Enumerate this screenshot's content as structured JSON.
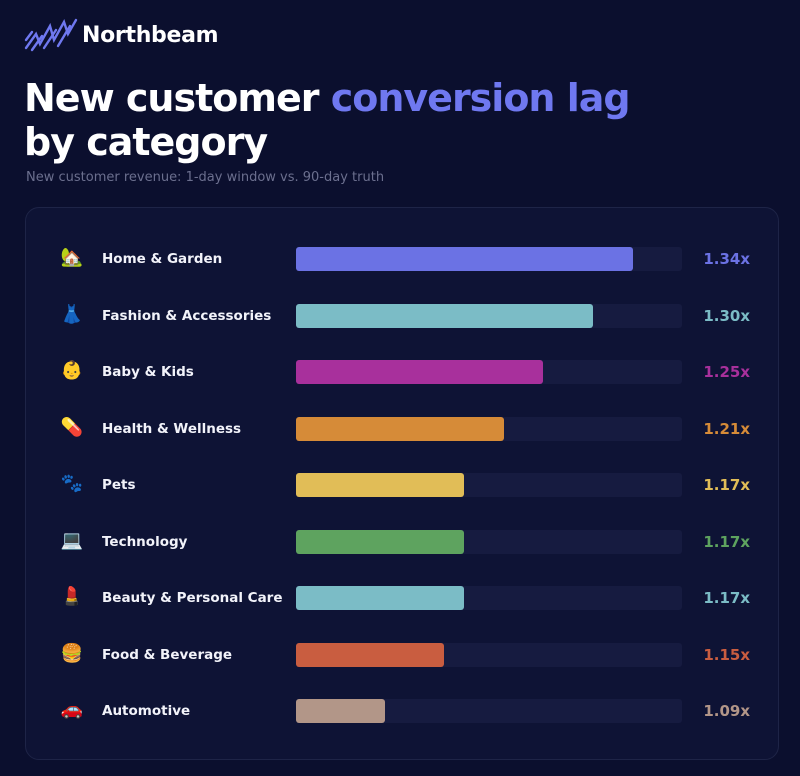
{
  "brand": {
    "name": "Northbeam",
    "logo_icon": "northbeam-logo-icon",
    "logo_color": "#6f78f0"
  },
  "header": {
    "title_part1": "New customer ",
    "title_accent": "conversion lag",
    "title_part2": "by category",
    "subtitle": "New customer revenue: 1-day window vs. 90-day truth",
    "accent_color": "#6f78f0"
  },
  "chart_data": {
    "type": "bar",
    "orientation": "horizontal",
    "title": "New customer conversion lag by category",
    "subtitle": "New customer revenue: 1-day window vs. 90-day truth",
    "categories": [
      "Home & Garden",
      "Fashion & Accessories",
      "Baby & Kids",
      "Health & Wellness",
      "Pets",
      "Technology",
      "Beauty & Personal Care",
      "Food & Beverage",
      "Automotive"
    ],
    "values": [
      1.34,
      1.3,
      1.25,
      1.21,
      1.17,
      1.17,
      1.17,
      1.15,
      1.09
    ],
    "value_labels": [
      "1.34x",
      "1.30x",
      "1.25x",
      "1.21x",
      "1.17x",
      "1.17x",
      "1.17x",
      "1.15x",
      "1.09x"
    ],
    "colors": [
      "#6b72e4",
      "#7bbcc6",
      "#a8309c",
      "#d68b38",
      "#e1bd57",
      "#5ea35f",
      "#7bbcc6",
      "#c95d40",
      "#b29688"
    ],
    "icons": [
      "house-icon",
      "dress-icon",
      "baby-icon",
      "pill-icon",
      "paw-prints-icon",
      "laptop-icon",
      "lipstick-icon",
      "hamburger-icon",
      "car-icon"
    ],
    "icon_glyphs": [
      "🏡",
      "👗",
      "👶",
      "💊",
      "🐾",
      "💻",
      "💄",
      "🍔",
      "🚗"
    ],
    "xlim": [
      1.0,
      1.39
    ],
    "grid": false,
    "legend": "none"
  }
}
